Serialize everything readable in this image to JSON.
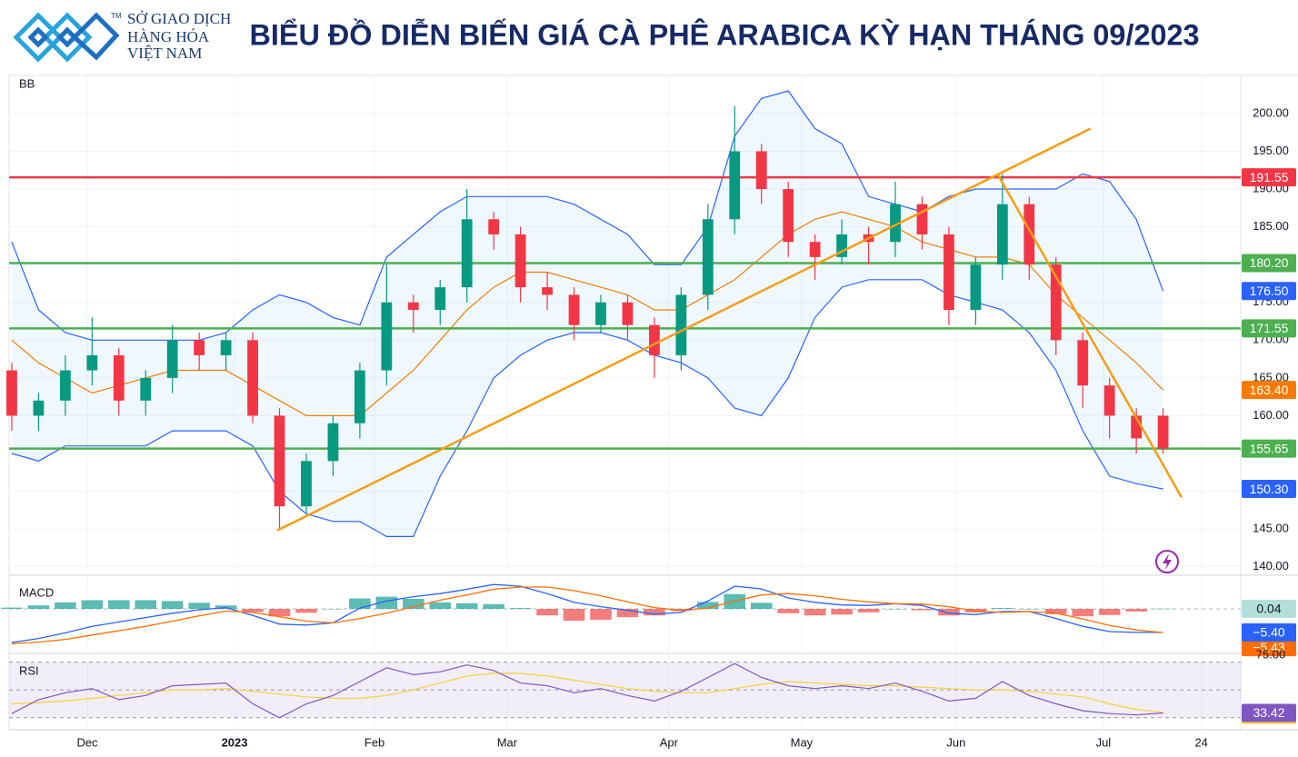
{
  "header": {
    "logo_lines": [
      "SỞ GIAO DỊCH",
      "HÀNG HÓA",
      "VIỆT NAM"
    ],
    "trademark": "TM",
    "title": "BIỂU ĐỒ DIỄN BIẾN GIÁ CÀ PHÊ ARABICA KỲ HẠN THÁNG 09/2023"
  },
  "chart_data": [
    {
      "type": "candlestick",
      "pane_label": "BB",
      "x": [
        0,
        1,
        2,
        3,
        4,
        5,
        6,
        7,
        8,
        9,
        10,
        11,
        12,
        13,
        14,
        15,
        16,
        17,
        18,
        19,
        20,
        21,
        22,
        23,
        24,
        25,
        26,
        27,
        28,
        29,
        30,
        31,
        32,
        33,
        34,
        35,
        36,
        37,
        38,
        39,
        40,
        41,
        42,
        43
      ],
      "open": [
        166,
        160,
        162,
        166,
        168,
        162,
        165,
        170,
        168,
        170,
        160,
        148,
        154,
        159,
        166,
        175,
        174,
        177,
        186,
        184,
        177,
        176,
        172,
        175,
        172,
        168,
        176,
        186,
        195,
        190,
        183,
        181,
        184,
        183,
        188,
        184,
        174,
        180,
        188,
        180,
        170,
        164,
        160,
        160
      ],
      "high": [
        167,
        163,
        168,
        173,
        169,
        166,
        172,
        171,
        171,
        171,
        161,
        155,
        160,
        167,
        180,
        176,
        178,
        190,
        187,
        185,
        179,
        177,
        176,
        176,
        173,
        177,
        188,
        201,
        196,
        191,
        184,
        186,
        185,
        191,
        189,
        185,
        181,
        192,
        189,
        181,
        171,
        165,
        161,
        161
      ],
      "low": [
        158,
        158,
        160,
        164,
        160,
        160,
        163,
        166,
        166,
        159,
        145,
        147,
        152,
        157,
        164,
        171,
        172,
        175,
        182,
        175,
        174,
        170,
        171,
        170,
        165,
        166,
        174,
        184,
        188,
        181,
        178,
        180,
        180,
        181,
        182,
        172,
        172,
        178,
        178,
        168,
        161,
        157,
        155,
        155
      ],
      "close": [
        160,
        162,
        166,
        168,
        162,
        165,
        170,
        168,
        170,
        160,
        148,
        154,
        159,
        166,
        175,
        174,
        177,
        186,
        184,
        177,
        176,
        172,
        175,
        172,
        168,
        176,
        186,
        195,
        190,
        183,
        181,
        184,
        183,
        188,
        184,
        174,
        180,
        188,
        180,
        170,
        164,
        160,
        157,
        155.65
      ],
      "up_color": "#089981",
      "down_color": "#f23645",
      "xlim": [
        -0.1,
        45.9
      ],
      "xticks": [
        {
          "value": 2.82,
          "label": "Dec"
        },
        {
          "value": 8.32,
          "label": "2023"
        },
        {
          "value": 13.55,
          "label": "Feb"
        },
        {
          "value": 18.5,
          "label": "Mar"
        },
        {
          "value": 24.54,
          "label": "Apr"
        },
        {
          "value": 29.5,
          "label": "May"
        },
        {
          "value": 35.27,
          "label": "Jun"
        },
        {
          "value": 40.77,
          "label": "Jul"
        },
        {
          "value": 44.43,
          "label": "24"
        }
      ],
      "ylim": [
        139,
        204.8
      ],
      "yticks": [
        {
          "value": 140,
          "label": "140.00"
        },
        {
          "value": 145,
          "label": "145.00"
        },
        {
          "value": 150,
          "label": "150.00"
        },
        {
          "value": 155,
          "label": "155.00"
        },
        {
          "value": 160,
          "label": "160.00"
        },
        {
          "value": 165,
          "label": "165.00"
        },
        {
          "value": 170,
          "label": "170.00"
        },
        {
          "value": 175,
          "label": "175.00"
        },
        {
          "value": 180,
          "label": "180.00"
        },
        {
          "value": 185,
          "label": "185.00"
        },
        {
          "value": 190,
          "label": "190.00"
        },
        {
          "value": 195,
          "label": "195.00"
        },
        {
          "value": 200,
          "label": "200.00"
        }
      ],
      "grid": true,
      "bollinger": [
        {
          "color": "#2962ff",
          "last_label": "176.50",
          "values": [
            183,
            174,
            171,
            170,
            170,
            170,
            170,
            170,
            171,
            174,
            176,
            175,
            173,
            172,
            181,
            184,
            187,
            189,
            189,
            189,
            189,
            188,
            186,
            184,
            180,
            180,
            185,
            197,
            202,
            203,
            198,
            196,
            189,
            188,
            187,
            189,
            190,
            190,
            190,
            190,
            192,
            191,
            186,
            176.5
          ]
        },
        {
          "color": "#f57c00",
          "last_label": "163.40",
          "values": [
            170,
            167,
            165,
            163,
            164,
            165,
            166,
            166,
            166,
            164,
            162,
            160,
            160,
            160,
            163,
            166,
            170,
            174,
            177,
            179,
            179,
            178,
            177,
            176,
            174,
            174,
            176,
            178,
            181,
            184,
            186,
            187,
            186,
            185,
            183,
            182,
            181,
            181,
            180,
            176,
            173,
            170,
            167,
            163.4
          ]
        },
        {
          "color": "#2962ff",
          "last_label": "150.30",
          "values": [
            155,
            154,
            156,
            156,
            156,
            156,
            158,
            158,
            158,
            156,
            150,
            147,
            146,
            146,
            144,
            144,
            152,
            158,
            165,
            168,
            170,
            171,
            171,
            170,
            168,
            167,
            165,
            161,
            160,
            165,
            173,
            177,
            178,
            178,
            178,
            176,
            175,
            174,
            171,
            166,
            158,
            152,
            151,
            150.3
          ]
        }
      ],
      "levels": [
        {
          "value": 191.55,
          "label": "191.55",
          "color": "#f23645"
        },
        {
          "value": 180.2,
          "label": "180.20",
          "color": "#4caf50"
        },
        {
          "value": 171.55,
          "label": "171.55",
          "color": "#4caf50"
        },
        {
          "value": 155.65,
          "label": "155.65",
          "color": "#4caf50"
        }
      ],
      "trendlines": [
        {
          "x": [
            9.91,
            40.29
          ],
          "y": [
            144.8,
            198
          ],
          "color": "#f59d15"
        },
        {
          "x": [
            36.83,
            43.69
          ],
          "y": [
            191.9,
            149.2
          ],
          "color": "#f59d15"
        }
      ]
    },
    {
      "type": "macd",
      "pane_label": "MACD",
      "ylim": [
        -10,
        7.3
      ],
      "histogram": {
        "up_color": "#26a69a",
        "down_color": "#ef5350",
        "last_label": "0.04",
        "values": [
          0.3,
          0.8,
          1.5,
          2,
          2,
          2,
          1.8,
          1.4,
          0.8,
          -0.7,
          -1.7,
          -0.9,
          0,
          2.4,
          2.8,
          2.3,
          1.5,
          1.3,
          1.1,
          0.2,
          -1.5,
          -2.7,
          -2.5,
          -1.9,
          -1.5,
          -0.5,
          1.6,
          3.4,
          1.4,
          -1,
          -1.5,
          -1.3,
          -0.8,
          0,
          -0.3,
          -1.5,
          -0.8,
          0.2,
          0,
          -1.2,
          -1.7,
          -1.4,
          -0.6,
          0.04
        ]
      },
      "lines": [
        {
          "color": "#2962ff",
          "last_label": "−5.40",
          "values": [
            -7.7,
            -6.8,
            -5.5,
            -4,
            -3,
            -2,
            -1,
            -0.2,
            0.3,
            -1.5,
            -3.5,
            -3.7,
            -3.2,
            0.2,
            1.8,
            2.8,
            3.5,
            4.5,
            5.6,
            5.2,
            3.5,
            1.5,
            0.5,
            -0.3,
            -1.2,
            -0.8,
            1.8,
            5.2,
            4.6,
            2.5,
            1.5,
            0.9,
            0.8,
            1.2,
            0.8,
            -1,
            -1.3,
            -0.6,
            -0.6,
            -2.2,
            -4,
            -5.2,
            -5.4,
            -5.4
          ]
        },
        {
          "color": "#ff6d00",
          "last_label": "−5.43",
          "values": [
            -8,
            -7.6,
            -7,
            -6,
            -5,
            -4,
            -2.8,
            -1.6,
            -0.5,
            -0.8,
            -1.8,
            -2.8,
            -3.2,
            -2.2,
            -1,
            0.5,
            2,
            3.2,
            4.5,
            5,
            5,
            4.2,
            3,
            1.6,
            0.3,
            -0.3,
            0.2,
            1.8,
            3.2,
            3.5,
            3,
            2.2,
            1.6,
            1.2,
            1.1,
            0.5,
            -0.5,
            -0.8,
            -0.6,
            -1,
            -2.3,
            -3.8,
            -4.8,
            -5.43
          ]
        }
      ]
    },
    {
      "type": "rsi",
      "pane_label": "RSI",
      "ylim": [
        22,
        75
      ],
      "yticks": [
        {
          "value": 75,
          "label": "75.00"
        }
      ],
      "levels": [
        70,
        50,
        30
      ],
      "lines": [
        {
          "color": "#7e57c2",
          "last_label": "33.42",
          "values": [
            33,
            43,
            48,
            51,
            43,
            46,
            53,
            54,
            55,
            40,
            30,
            40,
            46,
            56,
            66,
            61,
            63,
            68,
            64,
            55,
            53,
            48,
            51,
            46,
            42,
            49,
            59,
            69,
            59,
            53,
            51,
            53,
            51,
            55,
            49,
            42,
            44,
            56,
            46,
            40,
            35,
            33,
            32,
            33.42
          ]
        },
        {
          "color": "#f7d038",
          "values": [
            40,
            41,
            42,
            44,
            46,
            48,
            50,
            50,
            51,
            49,
            47,
            45,
            44,
            44,
            46,
            50,
            55,
            60,
            62,
            62,
            60,
            57,
            54,
            51,
            49,
            48,
            48,
            51,
            54,
            56,
            55,
            54,
            53,
            53,
            52,
            51,
            50,
            50,
            49,
            47,
            45,
            40,
            36,
            34
          ]
        }
      ]
    }
  ]
}
